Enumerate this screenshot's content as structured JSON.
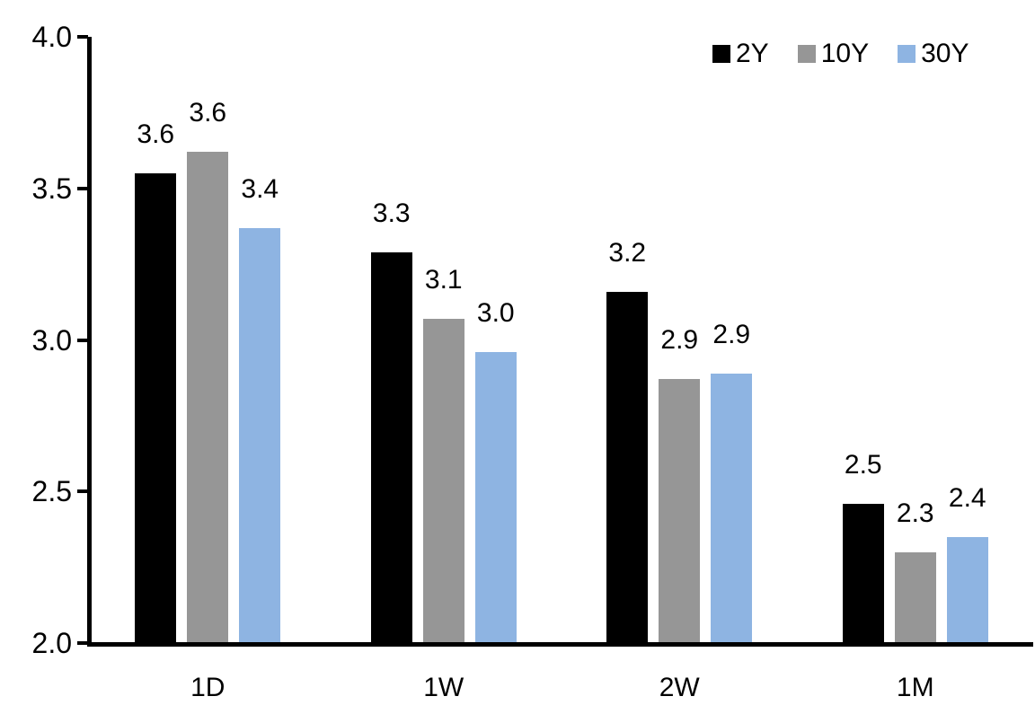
{
  "chart_data": {
    "type": "bar",
    "title": "",
    "xlabel": "",
    "ylabel": "",
    "categories": [
      "1D",
      "1W",
      "2W",
      "1M"
    ],
    "series": [
      {
        "name": "2Y",
        "color": "#000000",
        "values": [
          3.55,
          3.29,
          3.16,
          2.46
        ],
        "labels": [
          "3.6",
          "3.3",
          "3.2",
          "2.5"
        ]
      },
      {
        "name": "10Y",
        "color": "#969696",
        "values": [
          3.62,
          3.07,
          2.87,
          2.3
        ],
        "labels": [
          "3.6",
          "3.1",
          "2.9",
          "2.3"
        ]
      },
      {
        "name": "30Y",
        "color": "#8EB4E2",
        "values": [
          3.37,
          2.96,
          2.89,
          2.35
        ],
        "labels": [
          "3.4",
          "3.0",
          "2.9",
          "2.4"
        ]
      }
    ],
    "ylim": [
      2.0,
      4.0
    ],
    "ytick_labels": [
      "2.0",
      "2.5",
      "3.0",
      "3.5",
      "4.0"
    ],
    "ytick_values": [
      2.0,
      2.5,
      3.0,
      3.5,
      4.0
    ],
    "grid": false,
    "legend_position": "top-right",
    "axis_color": "#000000",
    "data_labels_shown": true
  }
}
